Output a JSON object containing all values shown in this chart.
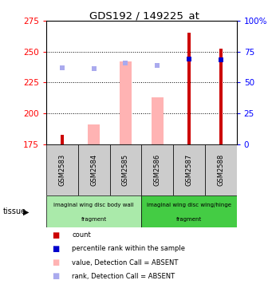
{
  "title": "GDS192 / 149225_at",
  "samples": [
    "GSM2583",
    "GSM2584",
    "GSM2585",
    "GSM2586",
    "GSM2587",
    "GSM2588"
  ],
  "ylim_left": [
    175,
    275
  ],
  "ylim_right": [
    0,
    100
  ],
  "yticks_left": [
    175,
    200,
    225,
    250,
    275
  ],
  "yticks_right": [
    0,
    25,
    50,
    75,
    100
  ],
  "yticklabels_right": [
    "0",
    "25",
    "50",
    "75",
    "100%"
  ],
  "bar_bottom": 175,
  "count_values": [
    183,
    175,
    175,
    175,
    265,
    252
  ],
  "count_color": "#cc0000",
  "percentile_values": [
    244,
    243
  ],
  "percentile_color": "#0000cc",
  "absent_value_tops": [
    175,
    191,
    242,
    213,
    175,
    175
  ],
  "absent_value_color": "#ffb3b3",
  "absent_rank_values": [
    237,
    236,
    241,
    239
  ],
  "absent_rank_color": "#aaaaee",
  "is_absent": [
    true,
    true,
    true,
    true,
    false,
    false
  ],
  "group1_label_line1": "imaginal wing disc body wall",
  "group1_label_line2": "fragment",
  "group2_label_line1": "imaginal wing disc wing/hinge",
  "group2_label_line2": "fragment",
  "tissue_label": "tissue",
  "group1_color": "#aaeaaa",
  "group2_color": "#44cc44",
  "legend_items": [
    {
      "color": "#cc0000",
      "label": "count"
    },
    {
      "color": "#0000cc",
      "label": "percentile rank within the sample"
    },
    {
      "color": "#ffb3b3",
      "label": "value, Detection Call = ABSENT"
    },
    {
      "color": "#aaaaee",
      "label": "rank, Detection Call = ABSENT"
    }
  ]
}
